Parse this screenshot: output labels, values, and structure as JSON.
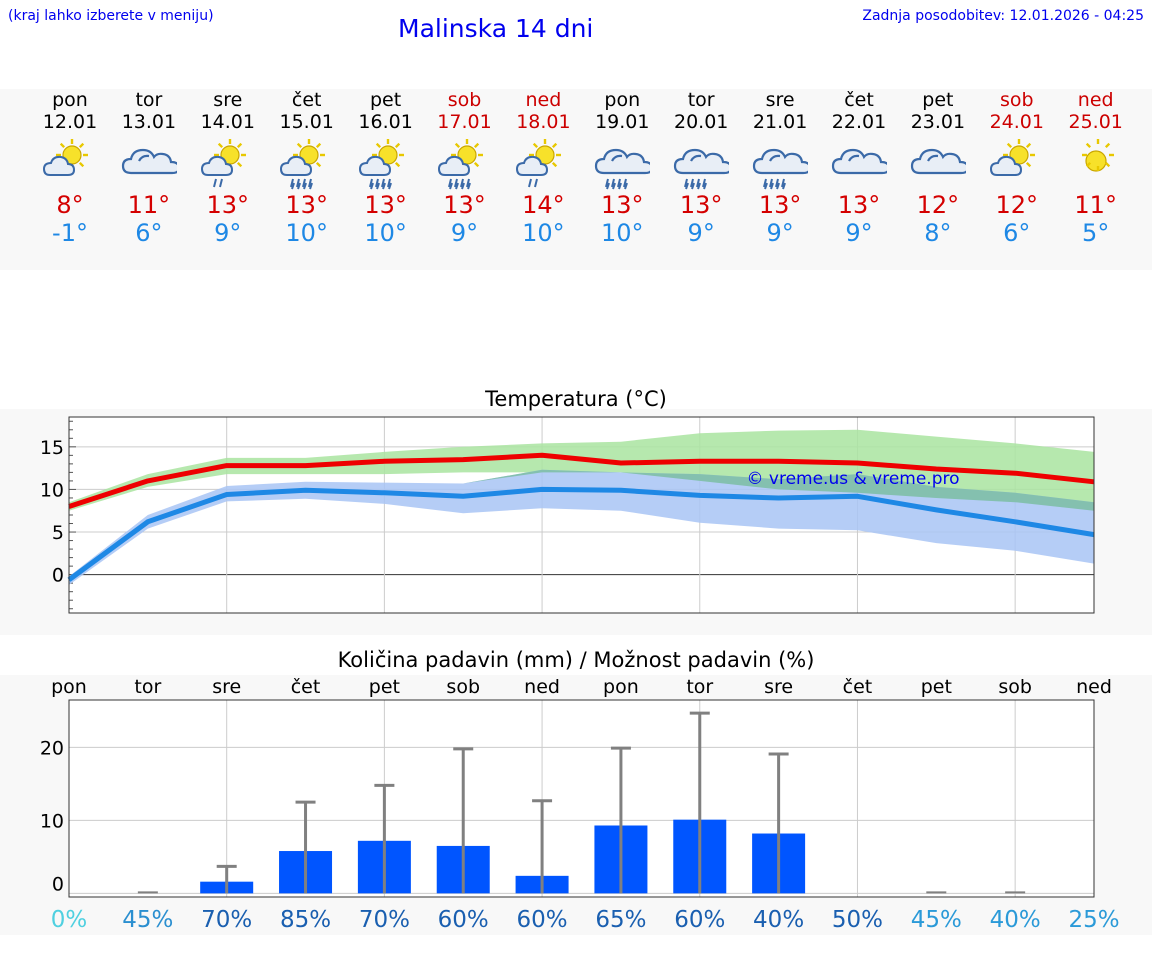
{
  "header": {
    "hint": "(kraj lahko izberete v meniju)",
    "title": "Malinska 14 dni",
    "updated": "Zadnja posodobitev: 12.01.2026 - 04:25"
  },
  "colors": {
    "max_line": "#ee0000",
    "min_line": "#1e88e5",
    "max_band": "#a9e4a0",
    "min_band": "#a8c4f4",
    "overlap_band": "#7fbfa8",
    "bar": "#0055ff",
    "error_bar": "#808080"
  },
  "days": [
    {
      "name": "pon",
      "date": "12.01",
      "weekend": false,
      "icon": "sun-cloud-icon",
      "max": "8°",
      "min": "-1°"
    },
    {
      "name": "tor",
      "date": "13.01",
      "weekend": false,
      "icon": "cloud-icon",
      "max": "11°",
      "min": "6°"
    },
    {
      "name": "sre",
      "date": "14.01",
      "weekend": false,
      "icon": "sun-cloud-light-rain-icon",
      "max": "13°",
      "min": "9°"
    },
    {
      "name": "čet",
      "date": "15.01",
      "weekend": false,
      "icon": "sun-cloud-rain-icon",
      "max": "13°",
      "min": "10°"
    },
    {
      "name": "pet",
      "date": "16.01",
      "weekend": false,
      "icon": "sun-cloud-rain-icon",
      "max": "13°",
      "min": "10°"
    },
    {
      "name": "sob",
      "date": "17.01",
      "weekend": true,
      "icon": "sun-cloud-rain-icon",
      "max": "13°",
      "min": "9°"
    },
    {
      "name": "ned",
      "date": "18.01",
      "weekend": true,
      "icon": "sun-cloud-light-rain-icon",
      "max": "14°",
      "min": "10°"
    },
    {
      "name": "pon",
      "date": "19.01",
      "weekend": false,
      "icon": "cloud-rain-icon",
      "max": "13°",
      "min": "10°"
    },
    {
      "name": "tor",
      "date": "20.01",
      "weekend": false,
      "icon": "cloud-rain-icon",
      "max": "13°",
      "min": "9°"
    },
    {
      "name": "sre",
      "date": "21.01",
      "weekend": false,
      "icon": "cloud-rain-icon",
      "max": "13°",
      "min": "9°"
    },
    {
      "name": "čet",
      "date": "22.01",
      "weekend": false,
      "icon": "cloud-icon",
      "max": "13°",
      "min": "9°"
    },
    {
      "name": "pet",
      "date": "23.01",
      "weekend": false,
      "icon": "cloud-icon",
      "max": "12°",
      "min": "8°"
    },
    {
      "name": "sob",
      "date": "24.01",
      "weekend": true,
      "icon": "sun-cloud-icon",
      "max": "12°",
      "min": "6°"
    },
    {
      "name": "ned",
      "date": "25.01",
      "weekend": true,
      "icon": "sun-icon",
      "max": "11°",
      "min": "5°"
    }
  ],
  "chart_data": [
    {
      "type": "line",
      "title": "Temperatura (°C)",
      "watermark": "© vreme.us & vreme.pro",
      "x": [
        0,
        1,
        2,
        3,
        4,
        5,
        6,
        7,
        8,
        9,
        10,
        11,
        12,
        13
      ],
      "ylim": [
        -4.5,
        18.5
      ],
      "yticks": [
        0,
        5,
        10,
        15
      ],
      "ytick_labels": [
        "0",
        "5",
        "10",
        "15"
      ],
      "series": [
        {
          "name": "max",
          "values": [
            8,
            11,
            12.8,
            12.8,
            13.3,
            13.5,
            14,
            13.1,
            13.3,
            13.3,
            13.1,
            12.4,
            11.9,
            10.9
          ],
          "band_low": [
            7.5,
            10.3,
            11.8,
            11.8,
            11.8,
            12,
            12,
            12,
            11,
            10,
            9.6,
            9,
            8.5,
            7.5
          ],
          "band_high": [
            8.5,
            11.8,
            13.7,
            13.7,
            14.4,
            15,
            15.4,
            15.6,
            16.6,
            16.9,
            17,
            16.2,
            15.4,
            14.4
          ]
        },
        {
          "name": "min",
          "values": [
            -0.6,
            6.2,
            9.4,
            9.9,
            9.6,
            9.2,
            10,
            9.9,
            9.3,
            9,
            9.2,
            7.6,
            6.2,
            4.7
          ],
          "band_low": [
            -1.2,
            5.4,
            8.6,
            8.9,
            8.3,
            7.2,
            7.8,
            7.5,
            6.1,
            5.4,
            5.2,
            3.7,
            2.8,
            1.3
          ],
          "band_high": [
            -0.2,
            7,
            10.4,
            10.9,
            10.8,
            10.7,
            12.3,
            12,
            11.8,
            11.2,
            11.8,
            10.3,
            9.6,
            8.5
          ]
        }
      ]
    },
    {
      "type": "bar",
      "title": "Količina padavin (mm) / Možnost padavin (%)",
      "categories": [
        "pon",
        "tor",
        "sre",
        "čet",
        "pet",
        "sob",
        "ned",
        "pon",
        "tor",
        "sre",
        "čet",
        "pet",
        "sob",
        "ned"
      ],
      "values": [
        0,
        0,
        1.6,
        5.8,
        7.2,
        6.5,
        2.4,
        9.3,
        10.1,
        8.2,
        0,
        0,
        0,
        0
      ],
      "error_high": [
        0,
        0.1,
        3.7,
        12.5,
        14.8,
        19.8,
        12.7,
        19.9,
        24.7,
        19.1,
        0,
        0.1,
        0.1,
        0
      ],
      "ylim": [
        -0.5,
        26.5
      ],
      "yticks": [
        0,
        10,
        20
      ],
      "ytick_labels": [
        "0",
        "10",
        "20"
      ],
      "probability_labels": [
        "0%",
        "45%",
        "70%",
        "85%",
        "70%",
        "60%",
        "60%",
        "65%",
        "60%",
        "40%",
        "50%",
        "45%",
        "40%",
        "25%"
      ],
      "probability_values": [
        0,
        45,
        70,
        85,
        70,
        60,
        60,
        65,
        60,
        40,
        50,
        45,
        40,
        25
      ],
      "probability_colors": [
        "#4fd0e0",
        "#2b8fd0",
        "#1a5fb0",
        "#1a5fb0",
        "#1a5fb0",
        "#1a5fb0",
        "#1a5fb0",
        "#1a5fb0",
        "#1a5fb0",
        "#1a5fb0",
        "#1a5fb0",
        "#2b9ad8",
        "#2b9ad8",
        "#2b9ad8"
      ]
    }
  ]
}
